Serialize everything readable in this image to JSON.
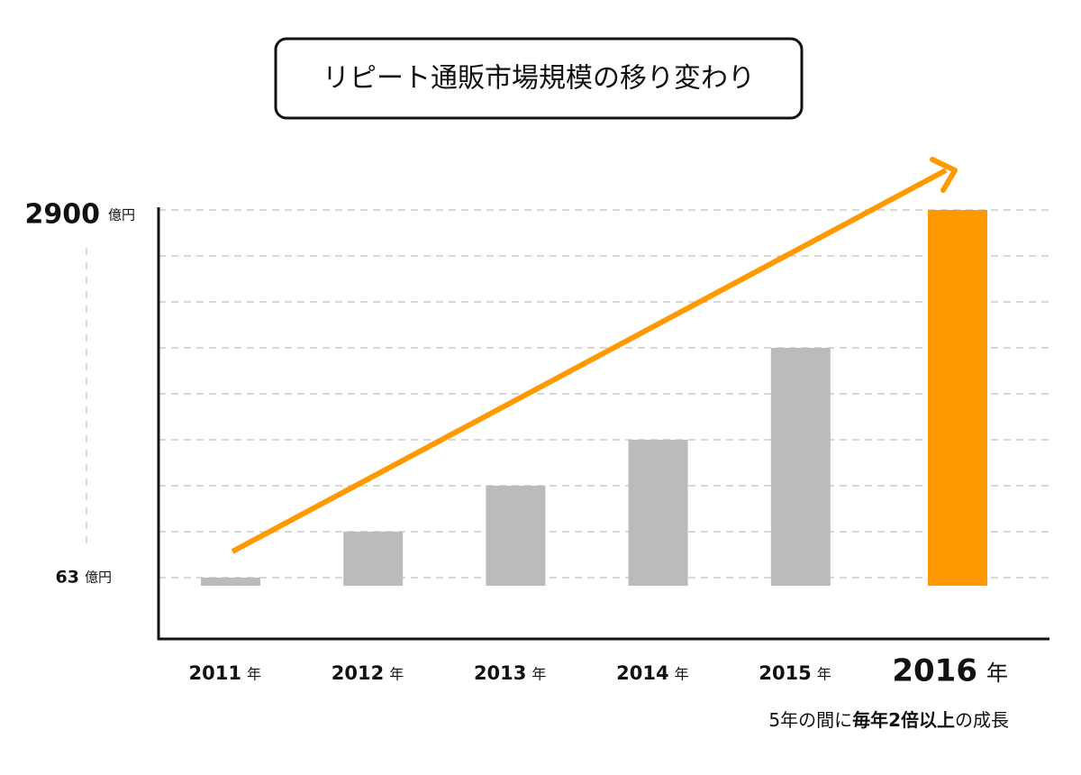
{
  "chart_data": {
    "type": "bar",
    "title": "リピート通販市場規模の移り変わり",
    "categories": [
      "2011",
      "2012",
      "2013",
      "2014",
      "2015",
      "2016"
    ],
    "x_unit": "年",
    "values": [
      63,
      418,
      772,
      1127,
      1836,
      2900
    ],
    "colors": [
      "#bbbbbb",
      "#bbbbbb",
      "#bbbbbb",
      "#bbbbbb",
      "#bbbbbb",
      "#ff9900"
    ],
    "ylim": [
      -410,
      2900
    ],
    "yticks": [
      63,
      2900
    ],
    "y_unit": "億円",
    "grid": true,
    "note": [
      "5年の間に",
      "毎年2倍以上",
      "の成長"
    ]
  }
}
